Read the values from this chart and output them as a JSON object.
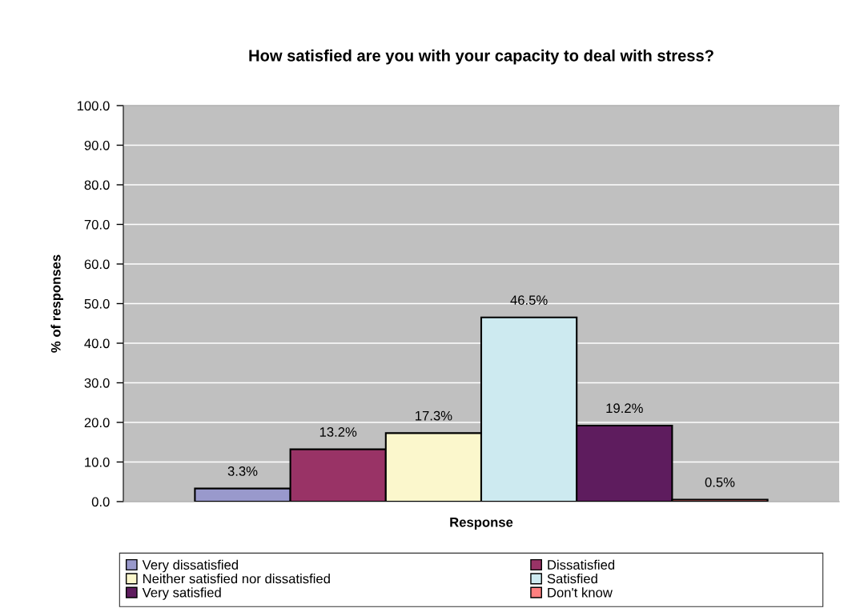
{
  "chart_data": {
    "type": "bar",
    "title": "How satisfied are you with your capacity to deal with stress?",
    "xlabel": "Response",
    "ylabel": "% of responses",
    "categories": [
      null
    ],
    "series": [
      {
        "name": "Very dissatisfied",
        "color": "#9999cc",
        "values": [
          3.3
        ],
        "value_labels": [
          "3.3%"
        ]
      },
      {
        "name": "Dissatisfied",
        "color": "#993366",
        "values": [
          13.2
        ],
        "value_labels": [
          "13.2%"
        ]
      },
      {
        "name": "Neither satisfied nor dissatisfied",
        "color": "#fbf7cc",
        "values": [
          17.3
        ],
        "value_labels": [
          "17.3%"
        ]
      },
      {
        "name": "Satisfied",
        "color": "#cdeaf0",
        "values": [
          46.5
        ],
        "value_labels": [
          "46.5%"
        ]
      },
      {
        "name": "Very satisfied",
        "color": "#5e1c5e",
        "values": [
          19.2
        ],
        "value_labels": [
          "19.2%"
        ]
      },
      {
        "name": "Don't know",
        "color": "#ff8080",
        "values": [
          0.5
        ],
        "value_labels": [
          "0.5%"
        ]
      }
    ],
    "ylim": [
      0,
      100
    ],
    "yticks": [
      {
        "value": 0,
        "label": "0.0"
      },
      {
        "value": 10,
        "label": "10.0"
      },
      {
        "value": 20,
        "label": "20.0"
      },
      {
        "value": 30,
        "label": "30.0"
      },
      {
        "value": 40,
        "label": "40.0"
      },
      {
        "value": 50,
        "label": "50.0"
      },
      {
        "value": 60,
        "label": "60.0"
      },
      {
        "value": 70,
        "label": "70.0"
      },
      {
        "value": 80,
        "label": "80.0"
      },
      {
        "value": 90,
        "label": "90.0"
      },
      {
        "value": 100,
        "label": "100.0"
      }
    ],
    "grid": "y",
    "legend": "bottom",
    "tick_labels": "y"
  }
}
